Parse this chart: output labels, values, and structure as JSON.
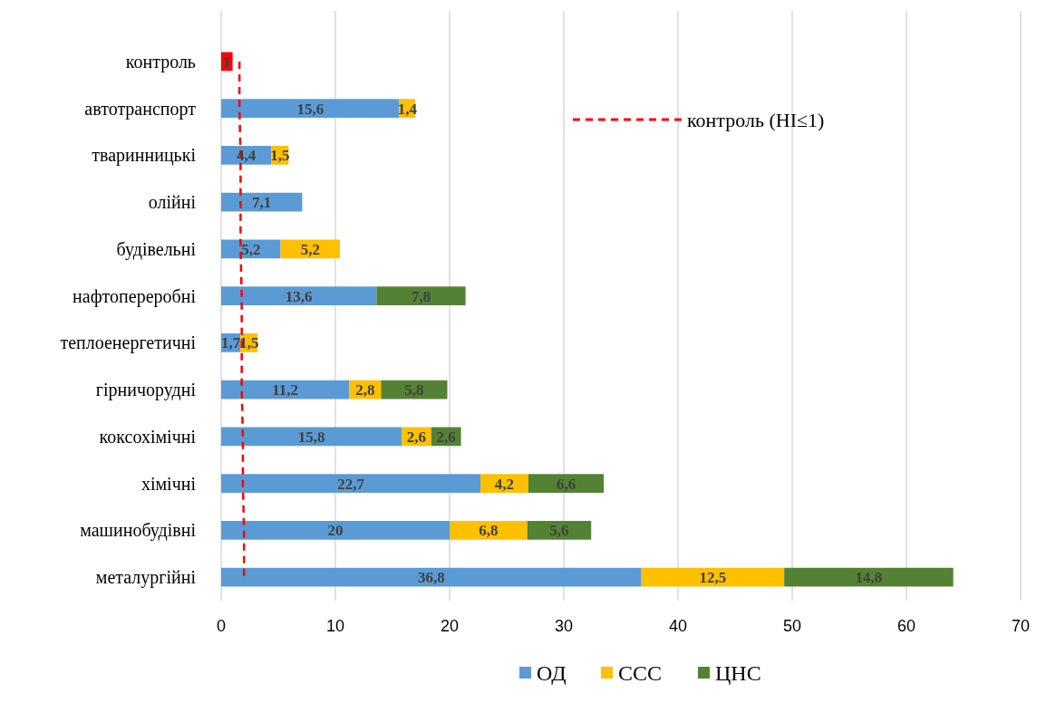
{
  "chart_data": {
    "type": "bar",
    "orientation": "horizontal",
    "stacked": true,
    "categories": [
      "контроль",
      "автотранспорт",
      "тваринницькі",
      "олійні",
      "будівельні",
      "нафтопереробні",
      "теплоенергетичні",
      "гірничорудні",
      "коксохімічні",
      "хімічні",
      "машинобудівні",
      "металургійні"
    ],
    "series": [
      {
        "name": "ОД",
        "color": "#5b9bd5",
        "values": [
          null,
          15.6,
          4.4,
          7.1,
          5.2,
          13.6,
          1.7,
          11.2,
          15.8,
          22.7,
          20,
          36.8
        ],
        "value_labels": [
          null,
          "15,6",
          "4,4",
          "7,1",
          "5,2",
          "13,6",
          "1,7",
          "11,2",
          "15,8",
          "22,7",
          "20",
          "36,8"
        ]
      },
      {
        "name": "ССС",
        "color": "#ffc000",
        "values": [
          null,
          1.4,
          1.5,
          null,
          5.2,
          null,
          1.5,
          2.8,
          2.6,
          4.2,
          6.8,
          12.5
        ],
        "value_labels": [
          null,
          "1,4",
          "1,5",
          null,
          "5,2",
          null,
          "1,5",
          "2,8",
          "2,6",
          "4,2",
          "6,8",
          "12,5"
        ]
      },
      {
        "name": "ЦНС",
        "color": "#548235",
        "values": [
          null,
          null,
          null,
          null,
          null,
          7.8,
          null,
          5.8,
          2.6,
          6.6,
          5.6,
          14.8
        ],
        "value_labels": [
          null,
          null,
          null,
          null,
          null,
          "7,8",
          null,
          "5,8",
          "2,6",
          "6,6",
          "5,6",
          "14,8"
        ]
      },
      {
        "color": "#ff0000",
        "values": [
          1,
          null,
          null,
          null,
          null,
          null,
          null,
          null,
          null,
          null,
          null,
          null
        ],
        "value_labels": [
          "1",
          null,
          null,
          null,
          null,
          null,
          null,
          null,
          null,
          null,
          null,
          null
        ]
      },
      {
        "type": "line",
        "name": "контроль (HI≤1)",
        "color": "#ff0000",
        "line_style": "dashed",
        "values": [
          1.6,
          1.6,
          1.7,
          1.7,
          1.7,
          1.8,
          1.8,
          1.8,
          1.9,
          1.9,
          2.0,
          2.0
        ]
      }
    ],
    "xlim": [
      0,
      70
    ],
    "xticks": [
      0,
      10,
      20,
      30,
      40,
      50,
      60,
      70
    ],
    "grid": "x",
    "legend": "bottom"
  }
}
